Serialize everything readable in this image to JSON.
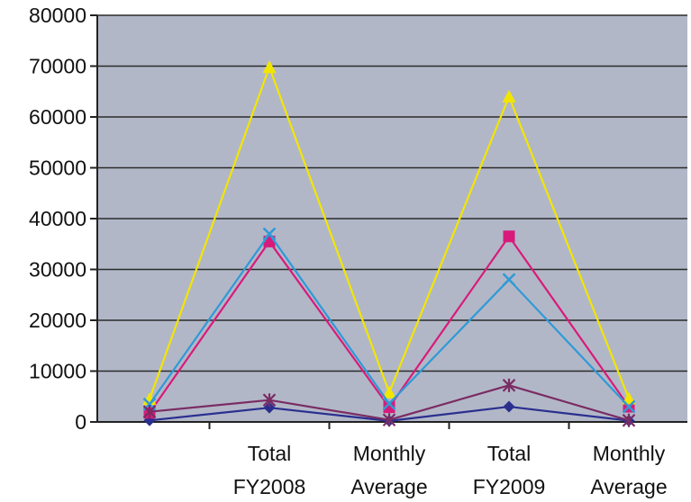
{
  "chart_data": {
    "type": "line",
    "categories": [
      "",
      "Total FY2008",
      "Monthly Average",
      "Total FY2009",
      "Monthly Average"
    ],
    "category_lines": [
      [
        ""
      ],
      [
        "Total",
        "FY2008"
      ],
      [
        "Monthly",
        "Average"
      ],
      [
        "Total",
        "FY2009"
      ],
      [
        "Monthly",
        "Average"
      ]
    ],
    "series": [
      {
        "color": "#2a2f8f",
        "marker": "diamond",
        "values": [
          300,
          2800,
          200,
          3000,
          250
        ]
      },
      {
        "color": "#d81b7a",
        "marker": "square",
        "values": [
          1800,
          35500,
          2900,
          36500,
          3000
        ]
      },
      {
        "color": "#f2e600",
        "marker": "triangle",
        "values": [
          4500,
          69800,
          5800,
          64000,
          4600
        ]
      },
      {
        "color": "#2f9ad6",
        "marker": "x",
        "values": [
          3500,
          37000,
          3600,
          28000,
          3000
        ]
      },
      {
        "color": "#7a2c63",
        "marker": "star",
        "values": [
          2000,
          4300,
          400,
          7200,
          300
        ]
      }
    ],
    "ylim": [
      0,
      80000
    ],
    "yticks": [
      0,
      10000,
      20000,
      30000,
      40000,
      50000,
      60000,
      70000,
      80000
    ],
    "grid": true,
    "plot_background": "#b2b7c8"
  }
}
